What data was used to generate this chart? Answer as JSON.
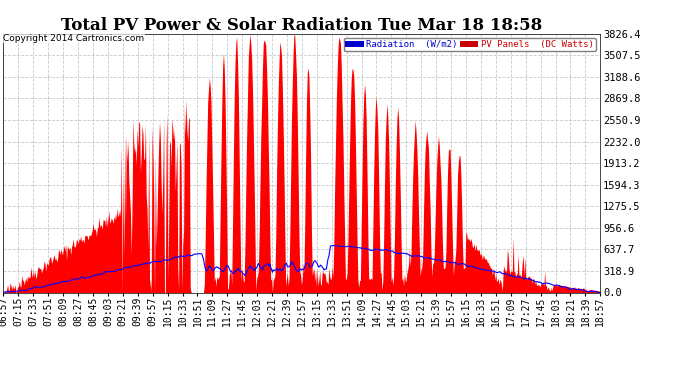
{
  "title": "Total PV Power & Solar Radiation Tue Mar 18 18:58",
  "copyright": "Copyright 2014 Cartronics.com",
  "y_ticks": [
    0.0,
    318.9,
    637.7,
    956.6,
    1275.5,
    1594.3,
    1913.2,
    2232.0,
    2550.9,
    2869.8,
    3188.6,
    3507.5,
    3826.4
  ],
  "y_max": 3826.4,
  "legend_radiation_label": "Radiation  (W/m2)",
  "legend_pv_label": "PV Panels  (DC Watts)",
  "legend_radiation_bg": "#0000cc",
  "legend_pv_bg": "#cc0000",
  "bg_color": "#ffffff",
  "plot_bg_color": "#ffffff",
  "grid_color": "#bbbbbb",
  "pv_color": "#ff0000",
  "radiation_color": "#0000ff",
  "title_fontsize": 12,
  "tick_fontsize": 7.5,
  "x_tick_labels": [
    "06:57",
    "07:15",
    "07:33",
    "07:51",
    "08:09",
    "08:27",
    "08:45",
    "09:03",
    "09:21",
    "09:39",
    "09:57",
    "10:15",
    "10:33",
    "10:51",
    "11:09",
    "11:27",
    "11:45",
    "12:03",
    "12:21",
    "12:39",
    "12:57",
    "13:15",
    "13:33",
    "13:51",
    "14:09",
    "14:27",
    "14:45",
    "15:03",
    "15:21",
    "15:39",
    "15:57",
    "16:15",
    "16:33",
    "16:51",
    "17:09",
    "17:27",
    "17:45",
    "18:03",
    "18:21",
    "18:39",
    "18:57"
  ]
}
